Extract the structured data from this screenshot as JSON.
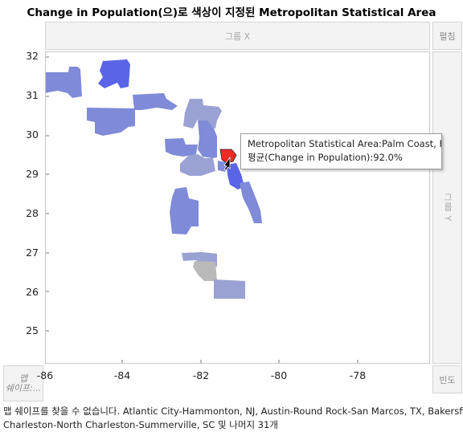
{
  "title": "Change in Population(으)로 색상이 지정된 Metropolitan Statistical Area",
  "zones": {
    "group_x": "그룹 X",
    "wrap": "펼침",
    "group_y": "그룹 Y",
    "frequency": "빈도",
    "map_shape_line1": "맵",
    "map_shape_line2": "쉐이프:..."
  },
  "axes": {
    "y_ticks": [
      "32",
      "31",
      "30",
      "29",
      "28",
      "27",
      "26",
      "25"
    ],
    "x_ticks": [
      "-86",
      "-84",
      "-82",
      "-80",
      "-78"
    ]
  },
  "tooltip": {
    "line1": "Metropolitan Statistical Area:Palm Coast, FL",
    "line2": "평균(Change in Population):92.0%"
  },
  "footnote": {
    "line1": "맵 쉐이프를 찾을 수 없습니다. Atlantic City-Hammonton, NJ, Austin-Round Rock-San Marcos, TX, Bakersfield, CA,",
    "line2": "Charleston-North Charleston-Summerville, SC 및 나머지 31개"
  },
  "colors": {
    "high": "#5a64e6",
    "mid": "#7f8ad8",
    "low": "#9aa2d4",
    "missing": "#b9b9b9",
    "selected": "#ee2a24"
  },
  "icons": [
    "cursor-arrow-icon"
  ]
}
